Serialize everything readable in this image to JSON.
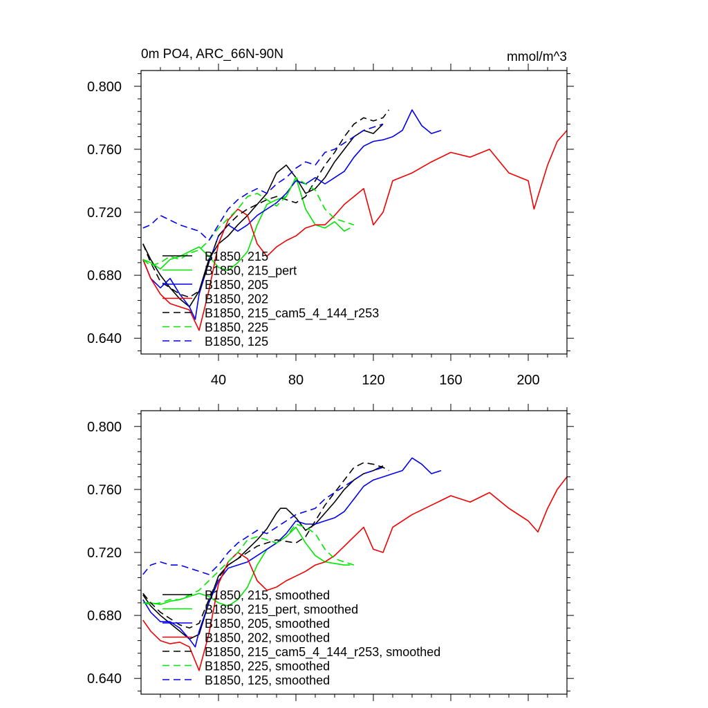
{
  "title_left": "0m PO4, ARC_66N-90N",
  "title_right": "mmol/m^3",
  "chart_data": [
    {
      "type": "line",
      "panel": "top",
      "title": "0m PO4, ARC_66N-90N",
      "units": "mmol/m^3",
      "xlim": [
        0,
        220
      ],
      "ylim": [
        0.63,
        0.81
      ],
      "xticks": [
        40,
        80,
        120,
        160,
        200
      ],
      "xtick_labels": [
        "40",
        "80",
        "120",
        "160",
        "200"
      ],
      "yticks": [
        0.64,
        0.68,
        0.72,
        0.76,
        0.8
      ],
      "ytick_labels": [
        "0.640",
        "0.680",
        "0.720",
        "0.760",
        "0.800"
      ],
      "legend_position": "lower-left",
      "series": [
        {
          "name": "B1850, 215",
          "color": "#000000",
          "dash": "solid",
          "x": [
            1,
            5,
            10,
            15,
            20,
            25,
            30,
            35,
            40,
            45,
            50,
            55,
            60,
            65,
            70,
            75,
            80,
            85,
            90,
            95,
            100,
            105,
            110,
            115,
            120,
            125
          ],
          "y": [
            0.7,
            0.69,
            0.68,
            0.672,
            0.665,
            0.66,
            0.67,
            0.69,
            0.7,
            0.705,
            0.712,
            0.718,
            0.725,
            0.732,
            0.745,
            0.75,
            0.742,
            0.732,
            0.735,
            0.742,
            0.752,
            0.76,
            0.768,
            0.772,
            0.77,
            0.776
          ]
        },
        {
          "name": "B1850, 215_pert",
          "color": "#00e600",
          "dash": "solid",
          "x": [
            1,
            5,
            10,
            15,
            20,
            25,
            30,
            35,
            40,
            45,
            50,
            55,
            60,
            65,
            70,
            75,
            80,
            85,
            90,
            95,
            100,
            105,
            108
          ],
          "y": [
            0.69,
            0.688,
            0.684,
            0.69,
            0.692,
            0.695,
            0.698,
            0.692,
            0.685,
            0.683,
            0.688,
            0.695,
            0.712,
            0.725,
            0.728,
            0.73,
            0.742,
            0.722,
            0.712,
            0.71,
            0.714,
            0.708,
            0.71
          ]
        },
        {
          "name": "B1850, 205",
          "color": "#0000ee",
          "dash": "solid",
          "x": [
            1,
            5,
            10,
            15,
            20,
            25,
            28,
            30,
            35,
            40,
            45,
            50,
            55,
            60,
            65,
            70,
            75,
            80,
            85,
            90,
            95,
            100,
            105,
            110,
            115,
            120,
            125,
            130,
            135,
            140,
            145,
            150,
            155
          ],
          "y": [
            0.69,
            0.678,
            0.672,
            0.678,
            0.668,
            0.66,
            0.652,
            0.668,
            0.688,
            0.705,
            0.712,
            0.708,
            0.712,
            0.718,
            0.722,
            0.726,
            0.732,
            0.74,
            0.738,
            0.742,
            0.738,
            0.742,
            0.746,
            0.755,
            0.762,
            0.765,
            0.766,
            0.768,
            0.772,
            0.785,
            0.775,
            0.77,
            0.772
          ]
        },
        {
          "name": "B1850, 202",
          "color": "#ee0000",
          "dash": "solid",
          "x": [
            1,
            5,
            10,
            15,
            20,
            25,
            30,
            35,
            40,
            45,
            50,
            55,
            60,
            65,
            70,
            75,
            80,
            85,
            90,
            95,
            100,
            105,
            110,
            115,
            120,
            125,
            130,
            140,
            150,
            160,
            170,
            180,
            190,
            200,
            203,
            210,
            215,
            220
          ],
          "y": [
            0.69,
            0.678,
            0.668,
            0.662,
            0.66,
            0.658,
            0.645,
            0.67,
            0.7,
            0.715,
            0.722,
            0.718,
            0.7,
            0.692,
            0.698,
            0.702,
            0.705,
            0.71,
            0.712,
            0.712,
            0.718,
            0.725,
            0.73,
            0.735,
            0.712,
            0.72,
            0.74,
            0.745,
            0.752,
            0.758,
            0.755,
            0.76,
            0.745,
            0.74,
            0.722,
            0.75,
            0.765,
            0.772
          ]
        },
        {
          "name": "B1850, 215_cam5_4_144_r253",
          "color": "#000000",
          "dash": "dash",
          "x": [
            1,
            5,
            10,
            15,
            20,
            25,
            30,
            35,
            40,
            45,
            50,
            55,
            60,
            65,
            70,
            75,
            80,
            85,
            90,
            95,
            100,
            105,
            110,
            115,
            120,
            125,
            128
          ],
          "y": [
            0.7,
            0.688,
            0.676,
            0.672,
            0.668,
            0.666,
            0.67,
            0.688,
            0.705,
            0.712,
            0.718,
            0.722,
            0.725,
            0.728,
            0.73,
            0.728,
            0.726,
            0.73,
            0.74,
            0.75,
            0.758,
            0.768,
            0.776,
            0.78,
            0.778,
            0.78,
            0.785
          ]
        },
        {
          "name": "B1850, 225",
          "color": "#00e600",
          "dash": "dash",
          "x": [
            1,
            5,
            10,
            15,
            20,
            25,
            30,
            35,
            40,
            45,
            50,
            55,
            60,
            65,
            70,
            75,
            80,
            85,
            90,
            95,
            100,
            105,
            110
          ],
          "y": [
            0.69,
            0.686,
            0.688,
            0.692,
            0.69,
            0.694,
            0.696,
            0.702,
            0.71,
            0.716,
            0.722,
            0.73,
            0.732,
            0.728,
            0.724,
            0.73,
            0.742,
            0.738,
            0.734,
            0.722,
            0.716,
            0.714,
            0.712
          ]
        },
        {
          "name": "B1850, 125",
          "color": "#0000ee",
          "dash": "dash",
          "x": [
            1,
            5,
            10,
            15,
            20,
            25,
            30,
            35,
            40,
            45,
            50,
            55,
            60,
            65,
            70,
            75,
            80,
            85,
            90,
            95,
            100,
            105,
            110,
            115,
            120,
            125
          ],
          "y": [
            0.71,
            0.712,
            0.718,
            0.715,
            0.712,
            0.71,
            0.708,
            0.702,
            0.712,
            0.722,
            0.728,
            0.732,
            0.735,
            0.732,
            0.738,
            0.742,
            0.748,
            0.752,
            0.75,
            0.758,
            0.76,
            0.764,
            0.768,
            0.772,
            0.774,
            0.776
          ]
        }
      ]
    },
    {
      "type": "line",
      "panel": "bottom",
      "xlim": [
        0,
        220
      ],
      "ylim": [
        0.63,
        0.81
      ],
      "xticks": [
        40,
        80,
        120,
        160,
        200
      ],
      "yticks": [
        0.64,
        0.68,
        0.72,
        0.76,
        0.8
      ],
      "ytick_labels": [
        "0.640",
        "0.680",
        "0.720",
        "0.760",
        "0.800"
      ],
      "legend_position": "lower-left",
      "series": [
        {
          "name": "B1850, 215, smoothed",
          "color": "#000000",
          "dash": "solid",
          "x": [
            1,
            5,
            10,
            15,
            20,
            25,
            30,
            35,
            40,
            45,
            50,
            55,
            60,
            65,
            70,
            72,
            75,
            80,
            85,
            90,
            95,
            100,
            105,
            110,
            115,
            120,
            125
          ],
          "y": [
            0.693,
            0.686,
            0.68,
            0.675,
            0.67,
            0.665,
            0.668,
            0.688,
            0.705,
            0.712,
            0.716,
            0.722,
            0.728,
            0.735,
            0.745,
            0.748,
            0.748,
            0.742,
            0.734,
            0.738,
            0.745,
            0.752,
            0.76,
            0.766,
            0.77,
            0.772,
            0.775
          ]
        },
        {
          "name": "B1850, 215_pert, smoothed",
          "color": "#00e600",
          "dash": "solid",
          "x": [
            1,
            5,
            10,
            15,
            20,
            25,
            30,
            35,
            40,
            45,
            50,
            55,
            60,
            65,
            70,
            75,
            80,
            85,
            90,
            95,
            100,
            105,
            108
          ],
          "y": [
            0.688,
            0.688,
            0.687,
            0.689,
            0.69,
            0.692,
            0.694,
            0.692,
            0.688,
            0.686,
            0.69,
            0.698,
            0.712,
            0.722,
            0.726,
            0.73,
            0.736,
            0.726,
            0.718,
            0.714,
            0.713,
            0.712,
            0.712
          ]
        },
        {
          "name": "B1850, 205, smoothed",
          "color": "#0000ee",
          "dash": "solid",
          "x": [
            1,
            5,
            10,
            15,
            20,
            25,
            28,
            30,
            35,
            40,
            45,
            50,
            55,
            60,
            65,
            70,
            75,
            80,
            85,
            90,
            95,
            100,
            105,
            110,
            115,
            120,
            125,
            130,
            135,
            140,
            145,
            150,
            155
          ],
          "y": [
            0.69,
            0.682,
            0.676,
            0.676,
            0.672,
            0.665,
            0.66,
            0.67,
            0.688,
            0.702,
            0.71,
            0.712,
            0.714,
            0.718,
            0.722,
            0.726,
            0.732,
            0.74,
            0.738,
            0.738,
            0.74,
            0.742,
            0.746,
            0.754,
            0.762,
            0.766,
            0.768,
            0.77,
            0.772,
            0.78,
            0.776,
            0.77,
            0.772
          ]
        },
        {
          "name": "B1850, 202, smoothed",
          "color": "#ee0000",
          "dash": "solid",
          "x": [
            1,
            5,
            10,
            15,
            20,
            25,
            30,
            35,
            40,
            45,
            50,
            55,
            60,
            65,
            70,
            75,
            80,
            85,
            90,
            95,
            100,
            105,
            110,
            115,
            120,
            125,
            130,
            140,
            150,
            160,
            170,
            180,
            190,
            200,
            205,
            210,
            215,
            220
          ],
          "y": [
            0.677,
            0.67,
            0.664,
            0.662,
            0.663,
            0.66,
            0.645,
            0.668,
            0.7,
            0.714,
            0.72,
            0.716,
            0.702,
            0.696,
            0.698,
            0.702,
            0.705,
            0.708,
            0.712,
            0.714,
            0.718,
            0.724,
            0.73,
            0.736,
            0.722,
            0.72,
            0.736,
            0.744,
            0.75,
            0.756,
            0.752,
            0.758,
            0.748,
            0.74,
            0.733,
            0.748,
            0.76,
            0.768
          ]
        },
        {
          "name": "B1850, 215_cam5_4_144_r253, smoothed",
          "color": "#000000",
          "dash": "dash",
          "x": [
            1,
            5,
            10,
            15,
            20,
            25,
            30,
            35,
            40,
            45,
            50,
            55,
            60,
            65,
            70,
            75,
            80,
            85,
            90,
            95,
            100,
            105,
            110,
            115,
            120,
            125,
            128
          ],
          "y": [
            0.694,
            0.688,
            0.682,
            0.678,
            0.674,
            0.672,
            0.675,
            0.69,
            0.704,
            0.712,
            0.716,
            0.72,
            0.724,
            0.726,
            0.728,
            0.727,
            0.726,
            0.73,
            0.74,
            0.75,
            0.758,
            0.766,
            0.774,
            0.777,
            0.776,
            0.774,
            0.772
          ]
        },
        {
          "name": "B1850, 225, smoothed",
          "color": "#00e600",
          "dash": "dash",
          "x": [
            1,
            5,
            10,
            15,
            20,
            25,
            30,
            35,
            40,
            45,
            50,
            55,
            60,
            65,
            70,
            75,
            80,
            85,
            90,
            95,
            100,
            105,
            110
          ],
          "y": [
            0.688,
            0.687,
            0.688,
            0.69,
            0.69,
            0.693,
            0.696,
            0.702,
            0.708,
            0.714,
            0.72,
            0.728,
            0.73,
            0.728,
            0.726,
            0.73,
            0.738,
            0.736,
            0.732,
            0.722,
            0.716,
            0.714,
            0.712
          ]
        },
        {
          "name": "B1850, 125, smoothed",
          "color": "#0000ee",
          "dash": "dash",
          "x": [
            1,
            5,
            10,
            15,
            20,
            25,
            30,
            35,
            40,
            45,
            50,
            55,
            60,
            65,
            70,
            75,
            80,
            85,
            90,
            95,
            100,
            105,
            110,
            115,
            120,
            125
          ],
          "y": [
            0.706,
            0.712,
            0.714,
            0.712,
            0.712,
            0.71,
            0.708,
            0.706,
            0.712,
            0.72,
            0.726,
            0.73,
            0.734,
            0.732,
            0.736,
            0.74,
            0.744,
            0.746,
            0.748,
            0.754,
            0.758,
            0.762,
            0.766,
            0.77,
            0.772,
            0.774
          ]
        }
      ]
    }
  ]
}
